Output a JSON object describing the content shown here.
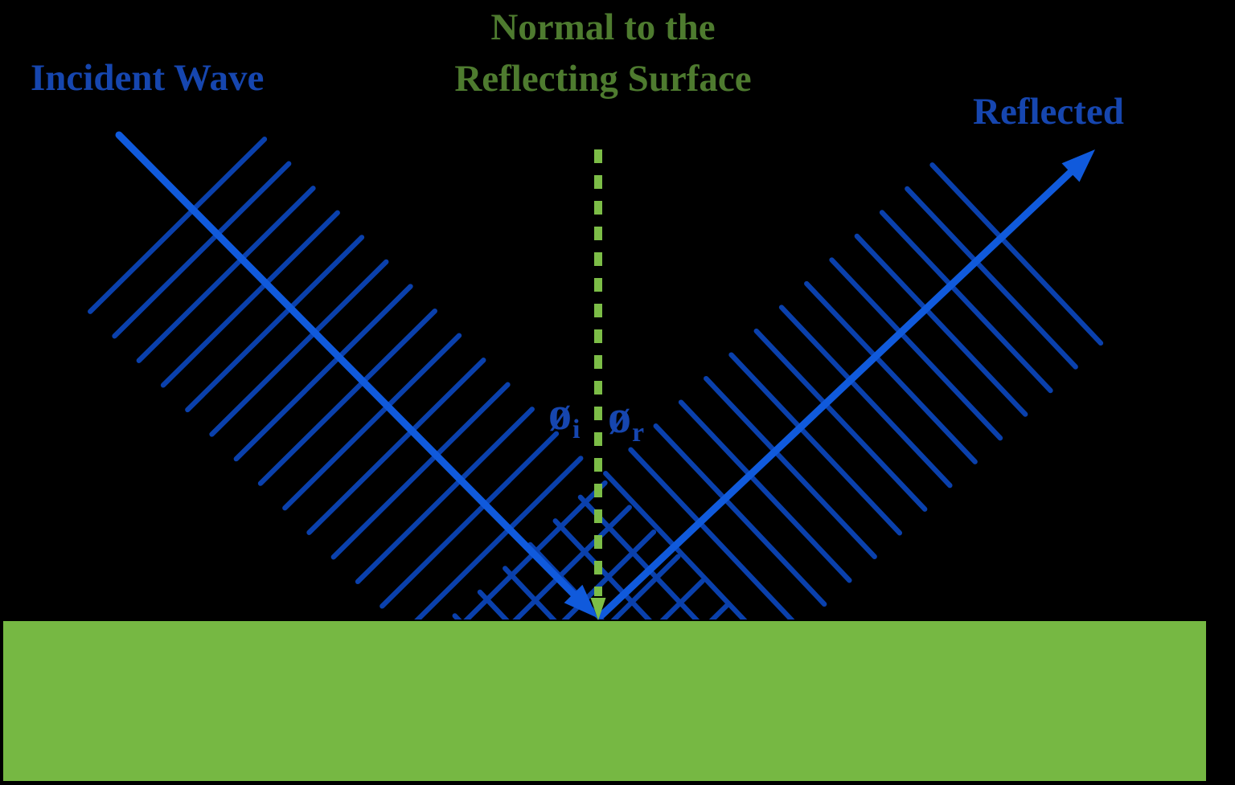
{
  "diagram": {
    "type": "wave-reflection-diagram",
    "labels": {
      "incident_wave": "Incident Wave",
      "normal_line1": "Normal to the",
      "normal_line2": "Reflecting Surface",
      "reflected": "Reflected",
      "angle_incidence": {
        "symbol": "ø",
        "subscript": "i"
      },
      "angle_reflection": {
        "symbol": "ø",
        "subscript": "r"
      }
    },
    "colors": {
      "background": "#000000",
      "ray_blue": "#105ADC",
      "wavefront_blue": "#0A40AC",
      "label_blue": "#1646AF",
      "surface_green": "#76B843",
      "normal_dash_green": "#7CBD47",
      "label_green": "#4E7B2F"
    }
  }
}
